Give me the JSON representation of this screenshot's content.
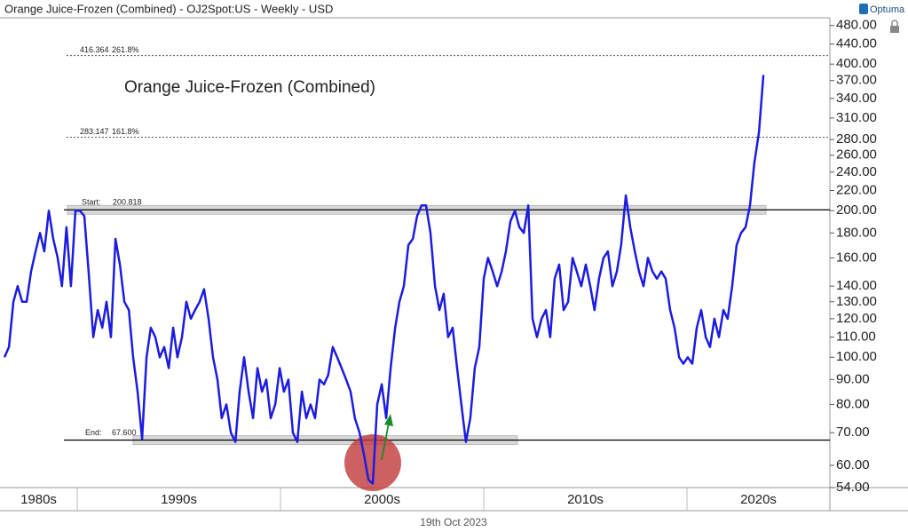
{
  "header": {
    "title": "Orange Juice-Frozen (Combined) - OJ2Spot:US - Weekly - USD",
    "brand": "Optuma"
  },
  "footer": {
    "date": "19th Oct 2023"
  },
  "chart_data": {
    "type": "line",
    "title": "Orange Juice-Frozen (Combined)",
    "log_scale": true,
    "xlim": [
      1986.2,
      2027.03
    ],
    "ylim": [
      54,
      498
    ],
    "xticks": [
      {
        "value": 1985,
        "label": "1980s"
      },
      {
        "value": 1995,
        "label": "1990s"
      },
      {
        "value": 2005,
        "label": "2000s"
      },
      {
        "value": 2015,
        "label": "2010s"
      },
      {
        "value": 2025,
        "label": "2020s"
      }
    ],
    "yticks": [
      {
        "value": 54,
        "label": "54.00"
      },
      {
        "value": 60,
        "label": "60.00"
      },
      {
        "value": 70,
        "label": "70.00"
      },
      {
        "value": 80,
        "label": "80.00"
      },
      {
        "value": 90,
        "label": "90.00"
      },
      {
        "value": 100,
        "label": "100.00"
      },
      {
        "value": 110,
        "label": "110.00"
      },
      {
        "value": 120,
        "label": "120.00"
      },
      {
        "value": 130,
        "label": "130.00"
      },
      {
        "value": 140,
        "label": "140.00"
      },
      {
        "value": 160,
        "label": "160.00"
      },
      {
        "value": 180,
        "label": "180.00"
      },
      {
        "value": 200,
        "label": "200.00"
      },
      {
        "value": 220,
        "label": "220.00"
      },
      {
        "value": 240,
        "label": "240.00"
      },
      {
        "value": 260,
        "label": "260.00"
      },
      {
        "value": 280,
        "label": "280.00"
      },
      {
        "value": 310,
        "label": "310.00"
      },
      {
        "value": 340,
        "label": "340.00"
      },
      {
        "value": 370,
        "label": "370.00"
      },
      {
        "value": 400,
        "label": "400.00"
      },
      {
        "value": 440,
        "label": "440.00"
      },
      {
        "value": 480,
        "label": "480.00"
      }
    ],
    "levels": [
      {
        "price": 416.364,
        "ratio": "261.8%"
      },
      {
        "price": 283.147,
        "ratio": "161.8%"
      }
    ],
    "start": {
      "label": "Start:",
      "price": 200.818
    },
    "end": {
      "label": "End:",
      "price": 67.6,
      "price_label": "67.600"
    },
    "x": [
      1986.42,
      1986.64,
      1986.86,
      1987.07,
      1987.29,
      1987.51,
      1987.73,
      1987.95,
      1988.17,
      1988.38,
      1988.6,
      1988.82,
      1989.04,
      1989.25,
      1989.47,
      1989.69,
      1989.91,
      1990.13,
      1990.35,
      1990.56,
      1990.79,
      1991.01,
      1991.23,
      1991.44,
      1991.66,
      1991.88,
      1992.1,
      1992.32,
      1992.54,
      1992.75,
      1992.97,
      1993.19,
      1993.41,
      1993.62,
      1993.84,
      1994.06,
      1994.28,
      1994.5,
      1994.72,
      1994.93,
      1995.15,
      1995.37,
      1995.59,
      1995.8,
      1996.02,
      1996.24,
      1996.46,
      1996.68,
      1996.9,
      1997.11,
      1997.34,
      1997.56,
      1997.78,
      1997.99,
      1998.21,
      1998.43,
      1998.65,
      1998.87,
      1999.09,
      1999.3,
      1999.52,
      1999.74,
      1999.96,
      2000.17,
      2000.39,
      2000.61,
      2000.83,
      2001.05,
      2001.27,
      2001.48,
      2001.7,
      2001.92,
      2002.14,
      2002.35,
      2002.57,
      2002.79,
      2003.01,
      2003.23,
      2003.45,
      2003.66,
      2003.89,
      2004.11,
      2004.33,
      2004.54,
      2004.76,
      2004.98,
      2005.2,
      2005.42,
      2005.64,
      2005.85,
      2006.07,
      2006.29,
      2006.51,
      2006.72,
      2006.94,
      2007.16,
      2007.38,
      2007.6,
      2007.82,
      2008.03,
      2008.25,
      2008.47,
      2008.69,
      2008.9,
      2009.12,
      2009.34,
      2009.56,
      2009.78,
      2010.0,
      2010.21,
      2010.44,
      2010.66,
      2010.88,
      2011.09,
      2011.31,
      2011.53,
      2011.75,
      2011.97,
      2012.19,
      2012.4,
      2012.62,
      2012.84,
      2013.06,
      2013.27,
      2013.49,
      2013.71,
      2013.93,
      2014.15,
      2014.37,
      2014.58,
      2014.8,
      2015.02,
      2015.24,
      2015.45,
      2015.67,
      2015.89,
      2016.11,
      2016.33,
      2016.55,
      2016.76,
      2016.99,
      2017.21,
      2017.43,
      2017.64,
      2017.86,
      2018.08,
      2018.3,
      2018.52,
      2018.74,
      2018.95,
      2019.17,
      2019.39,
      2019.61,
      2019.82,
      2020.04,
      2020.26,
      2020.48,
      2020.7,
      2020.92,
      2021.13,
      2021.35,
      2021.57,
      2021.79,
      2022.0,
      2022.22,
      2022.44,
      2022.66,
      2022.88,
      2023.1,
      2023.31,
      2023.54,
      2023.76
    ],
    "series": [
      {
        "color": "#1c1ce0",
        "values": [
          100,
          105,
          130,
          140,
          130,
          130,
          150,
          165,
          180,
          165,
          200,
          175,
          160,
          140,
          185,
          140,
          200,
          200,
          195,
          150,
          110,
          125,
          115,
          130,
          110,
          175,
          155,
          130,
          125,
          100,
          85,
          68,
          100,
          115,
          110,
          100,
          105,
          95,
          115,
          100,
          110,
          130,
          120,
          125,
          130,
          138,
          120,
          100,
          90,
          75,
          80,
          70,
          67,
          85,
          100,
          85,
          75,
          95,
          85,
          90,
          75,
          80,
          95,
          85,
          90,
          70,
          67,
          85,
          75,
          80,
          75,
          90,
          88,
          92,
          105,
          100,
          95,
          90,
          85,
          75,
          70,
          63,
          56,
          55,
          80,
          88,
          75,
          95,
          115,
          130,
          140,
          170,
          175,
          195,
          205,
          205,
          180,
          140,
          125,
          135,
          110,
          115,
          95,
          80,
          67,
          75,
          95,
          105,
          145,
          160,
          150,
          140,
          150,
          165,
          190,
          200,
          185,
          180,
          205,
          120,
          110,
          120,
          125,
          110,
          145,
          155,
          125,
          130,
          160,
          150,
          140,
          155,
          140,
          125,
          145,
          160,
          165,
          140,
          150,
          170,
          215,
          185,
          165,
          150,
          140,
          160,
          150,
          145,
          150,
          145,
          125,
          115,
          100,
          97,
          100,
          97,
          115,
          125,
          110,
          105,
          120,
          110,
          125,
          120,
          140,
          170,
          180,
          185,
          205,
          250,
          290,
          380
        ]
      }
    ]
  }
}
